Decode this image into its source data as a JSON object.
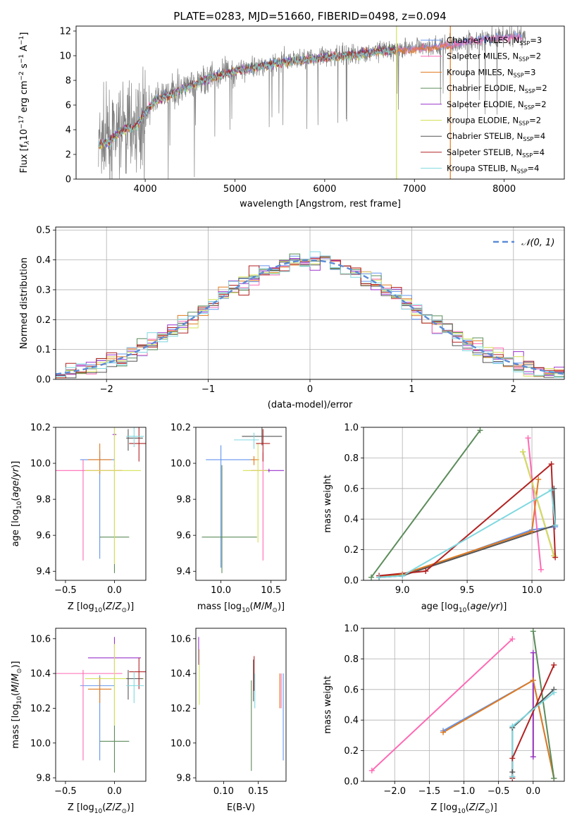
{
  "figure": {
    "title": "PLATE=0283, MJD=51660, FIBERID=0498, z=0.094"
  },
  "models": [
    {
      "label": "Chabrier MILES, N",
      "nssp": "=3",
      "color": "#6495ed"
    },
    {
      "label": "Salpeter MILES, N",
      "nssp": "=2",
      "color": "#ff69b4"
    },
    {
      "label": "Kroupa MILES, N",
      "nssp": "=3",
      "color": "#e07a1f"
    },
    {
      "label": "Chabrier ELODIE, N",
      "nssp": "=2",
      "color": "#5b8c5a"
    },
    {
      "label": "Salpeter ELODIE, N",
      "nssp": "=2",
      "color": "#9932cc"
    },
    {
      "label": "Kroupa ELODIE, N",
      "nssp": "=2",
      "color": "#d4e157"
    },
    {
      "label": "Chabrier STELIB, N",
      "nssp": "=4",
      "color": "#555555"
    },
    {
      "label": "Salpeter STELIB, N",
      "nssp": "=4",
      "color": "#b22222"
    },
    {
      "label": "Kroupa STELIB, N",
      "nssp": "=4",
      "color": "#7fd8e0"
    }
  ],
  "chart_data": [
    {
      "id": "spectrum",
      "type": "line",
      "xlabel": "wavelength [Angstrom, rest frame]",
      "ylabel_parts": [
        "Flux [f",
        "λ",
        "10",
        "−17",
        " erg cm",
        "−2",
        " s",
        "−1",
        " A",
        "−1",
        "]"
      ],
      "xlim": [
        3230,
        8670
      ],
      "ylim": [
        0,
        12.4
      ],
      "xticks": [
        4000,
        5000,
        6000,
        7000,
        8000
      ],
      "yticks": [
        0,
        2,
        4,
        6,
        8,
        10,
        12
      ],
      "data_color": "#808080",
      "continuum": {
        "x": [
          3480,
          3600,
          3700,
          3800,
          3900,
          4000,
          4100,
          4300,
          4500,
          4700,
          5000,
          5300,
          5600,
          6000,
          6300,
          6600,
          7000,
          7400,
          7800,
          8200
        ],
        "y": [
          2.8,
          3.1,
          3.7,
          4.2,
          4.3,
          5.5,
          6.3,
          7.0,
          7.6,
          8.2,
          8.8,
          9.2,
          9.6,
          9.9,
          10.1,
          10.4,
          10.6,
          10.9,
          11.4,
          11.6
        ]
      },
      "legend": "right"
    },
    {
      "id": "residuals",
      "type": "histogram",
      "xlabel": "(data-model)/error",
      "ylabel": "Normed distribution",
      "xlim": [
        -2.5,
        2.5
      ],
      "ylim": [
        0,
        0.51
      ],
      "xticks": [
        -2,
        -1,
        0,
        1,
        2
      ],
      "xtick_labels": [
        "−2",
        "−1",
        "0",
        "1",
        "2"
      ],
      "yticks": [
        0.0,
        0.1,
        0.2,
        0.3,
        0.4,
        0.5
      ],
      "ytick_labels": [
        "0.0",
        "0.1",
        "0.2",
        "0.3",
        "0.4",
        "0.5"
      ],
      "bin_width": 0.1,
      "normal_label": "𝒩(0, 1)",
      "normal_color": "#5b8bd6",
      "grid": true,
      "legend": "top-right"
    },
    {
      "id": "age-vs-Z",
      "type": "errorbar",
      "xlabel": "Z [log10(Z/Z⊙)]",
      "ylabel": "age  [log10(age/yr)]",
      "xlim": [
        -0.6,
        0.32
      ],
      "ylim": [
        9.35,
        10.2
      ],
      "xticks": [
        -0.5,
        0.0
      ],
      "xtick_labels": [
        "−0.5",
        "0.0"
      ],
      "yticks": [
        9.4,
        9.6,
        9.8,
        10.0,
        10.2
      ],
      "ytick_labels": [
        "9.4",
        "9.6",
        "9.8",
        "10.0",
        "10.2"
      ],
      "points": [
        {
          "m": 0,
          "x": -0.15,
          "xerr": [
            0.2,
            0.15
          ],
          "y": 10.02,
          "yerr": [
            0.55,
            0.05
          ]
        },
        {
          "m": 1,
          "x": -0.32,
          "xerr": [
            0.28,
            0.4
          ],
          "y": 9.96,
          "yerr": [
            0.5,
            0.06
          ]
        },
        {
          "m": 2,
          "x": -0.15,
          "xerr": [
            0.12,
            0.12
          ],
          "y": 10.02,
          "yerr": [
            0.08,
            0.09
          ]
        },
        {
          "m": 3,
          "x": 0.0,
          "xerr": [
            0.15,
            0.15
          ],
          "y": 9.59,
          "yerr": [
            0.2,
            0.4
          ]
        },
        {
          "m": 4,
          "x": 0.0,
          "xerr": [
            0.02,
            0.02
          ],
          "y": 10.16,
          "yerr": [
            0.18,
            0.05
          ]
        },
        {
          "m": 5,
          "x": 0.0,
          "xerr": [
            0.3,
            0.27
          ],
          "y": 9.96,
          "yerr": [
            0.52,
            0.24
          ]
        },
        {
          "m": 6,
          "x": 0.14,
          "xerr": [
            0.02,
            0.15
          ],
          "y": 10.14,
          "yerr": [
            0.07,
            0.05
          ]
        },
        {
          "m": 7,
          "x": 0.25,
          "xerr": [
            0.1,
            0.1
          ],
          "y": 10.11,
          "yerr": [
            0.1,
            0.09
          ]
        },
        {
          "m": 8,
          "x": 0.2,
          "xerr": [
            0.08,
            0.1
          ],
          "y": 10.15,
          "yerr": [
            0.06,
            0.05
          ]
        }
      ]
    },
    {
      "id": "age-vs-mass",
      "type": "errorbar",
      "xlabel": "mass [log10(M/M⊙)]",
      "ylabel": "",
      "xlim": [
        9.75,
        10.65
      ],
      "ylim": [
        9.35,
        10.2
      ],
      "xticks": [
        10.0,
        10.5
      ],
      "xtick_labels": [
        "10.0",
        "10.5"
      ],
      "yticks": [
        9.4,
        9.6,
        9.8,
        10.0,
        10.2
      ],
      "ytick_labels": [
        "9.4",
        "9.6",
        "9.8",
        "10.0",
        "10.2"
      ],
      "points": [
        {
          "m": 0,
          "x": 10.0,
          "xerr": [
            0.15,
            0.33
          ],
          "y": 10.02,
          "yerr": [
            0.6,
            0.08
          ]
        },
        {
          "m": 1,
          "x": 10.42,
          "xerr": [
            0.12,
            0.05
          ],
          "y": 9.96,
          "yerr": [
            0.5,
            0.1
          ]
        },
        {
          "m": 2,
          "x": 10.33,
          "xerr": [
            0.03,
            0.05
          ],
          "y": 10.02,
          "yerr": [
            0.03,
            0.02
          ]
        },
        {
          "m": 3,
          "x": 10.01,
          "xerr": [
            0.2,
            0.35
          ],
          "y": 9.59,
          "yerr": [
            0.2,
            0.4
          ]
        },
        {
          "m": 4,
          "x": 10.48,
          "xerr": [
            0.05,
            0.15
          ],
          "y": 9.96,
          "yerr": [
            0.01,
            0.01
          ]
        },
        {
          "m": 5,
          "x": 10.37,
          "xerr": [
            0.15,
            0.1
          ],
          "y": 9.96,
          "yerr": [
            0.4,
            0.15
          ]
        },
        {
          "m": 6,
          "x": 10.41,
          "xerr": [
            0.2,
            0.2
          ],
          "y": 10.15,
          "yerr": [
            0.05,
            0.05
          ]
        },
        {
          "m": 7,
          "x": 10.42,
          "xerr": [
            0.07,
            0.07
          ],
          "y": 10.11,
          "yerr": [
            0.1,
            0.08
          ]
        },
        {
          "m": 8,
          "x": 10.33,
          "xerr": [
            0.2,
            0.05
          ],
          "y": 10.13,
          "yerr": [
            0.05,
            0.04
          ]
        }
      ]
    },
    {
      "id": "weight-vs-age",
      "type": "line",
      "xlabel": "age  [log10(age/yr)]",
      "ylabel": "mass weight",
      "xlim": [
        8.7,
        10.25
      ],
      "ylim": [
        0,
        1
      ],
      "xticks": [
        9.0,
        9.5,
        10.0
      ],
      "xtick_labels": [
        "9.0",
        "9.5",
        "10.0"
      ],
      "yticks": [
        0.0,
        0.2,
        0.4,
        0.6,
        0.8,
        1.0
      ],
      "ytick_labels": [
        "0.0",
        "0.2",
        "0.4",
        "0.6",
        "0.8",
        "1.0"
      ],
      "grid": true,
      "series": [
        {
          "m": 0,
          "x": [
            8.82,
            9.0,
            10.0,
            10.18
          ],
          "y": [
            0.02,
            0.03,
            0.33,
            0.35
          ]
        },
        {
          "m": 1,
          "x": [
            10.07,
            9.97
          ],
          "y": [
            0.07,
            0.93
          ]
        },
        {
          "m": 2,
          "x": [
            8.82,
            9.0,
            10.0,
            10.05
          ],
          "y": [
            0.02,
            0.04,
            0.32,
            0.66
          ]
        },
        {
          "m": 3,
          "x": [
            8.76,
            9.6
          ],
          "y": [
            0.02,
            0.98
          ]
        },
        {
          "m": 4,
          "x": [
            9.93,
            10.17
          ],
          "y": [
            0.84,
            0.16
          ]
        },
        {
          "m": 5,
          "x": [
            9.93,
            10.17
          ],
          "y": [
            0.84,
            0.16
          ]
        },
        {
          "m": 6,
          "x": [
            8.82,
            9.0,
            10.18,
            10.17
          ],
          "y": [
            0.02,
            0.03,
            0.36,
            0.6
          ]
        },
        {
          "m": 7,
          "x": [
            8.82,
            9.18,
            10.15,
            10.18
          ],
          "y": [
            0.03,
            0.06,
            0.76,
            0.15
          ]
        },
        {
          "m": 8,
          "x": [
            8.82,
            9.0,
            10.15,
            10.18
          ],
          "y": [
            0.02,
            0.03,
            0.59,
            0.36
          ]
        }
      ]
    },
    {
      "id": "mass-vs-Z",
      "type": "errorbar",
      "xlabel": "Z [log10(Z/Z⊙)]",
      "ylabel": "mass [log10(M/M⊙)]",
      "xlim": [
        -0.6,
        0.32
      ],
      "ylim": [
        9.78,
        10.66
      ],
      "xticks": [
        -0.5,
        0.0
      ],
      "xtick_labels": [
        "−0.5",
        "0.0"
      ],
      "yticks": [
        9.8,
        10.0,
        10.2,
        10.4,
        10.6
      ],
      "ytick_labels": [
        "9.8",
        "10.0",
        "10.2",
        "10.4",
        "10.6"
      ],
      "points": [
        {
          "m": 0,
          "x": -0.15,
          "xerr": [
            0.2,
            0.15
          ],
          "y": 10.33,
          "yerr": [
            0.43,
            0.06
          ]
        },
        {
          "m": 1,
          "x": -0.32,
          "xerr": [
            0.28,
            0.4
          ],
          "y": 10.4,
          "yerr": [
            0.5,
            0.02
          ]
        },
        {
          "m": 2,
          "x": -0.15,
          "xerr": [
            0.12,
            0.12
          ],
          "y": 10.31,
          "yerr": [
            0.08,
            0.07
          ]
        },
        {
          "m": 3,
          "x": 0.0,
          "xerr": [
            0.15,
            0.15
          ],
          "y": 10.01,
          "yerr": [
            0.18,
            0.37
          ]
        },
        {
          "m": 4,
          "x": 0.0,
          "xerr": [
            0.27,
            0.27
          ],
          "y": 10.49,
          "yerr": [
            0.08,
            0.12
          ]
        },
        {
          "m": 5,
          "x": 0.0,
          "xerr": [
            0.3,
            0.3
          ],
          "y": 10.37,
          "yerr": [
            0.27,
            0.2
          ]
        },
        {
          "m": 6,
          "x": 0.14,
          "xerr": [
            0.02,
            0.15
          ],
          "y": 10.37,
          "yerr": [
            0.12,
            0.05
          ]
        },
        {
          "m": 7,
          "x": 0.25,
          "xerr": [
            0.1,
            0.1
          ],
          "y": 10.41,
          "yerr": [
            0.1,
            0.08
          ]
        },
        {
          "m": 8,
          "x": 0.2,
          "xerr": [
            0.08,
            0.1
          ],
          "y": 10.33,
          "yerr": [
            0.1,
            0.08
          ]
        }
      ]
    },
    {
      "id": "mass-vs-EBV",
      "type": "errorbar",
      "xlabel": "E(B-V)",
      "ylabel": "",
      "xlim": [
        0.06,
        0.19
      ],
      "ylim": [
        9.78,
        10.66
      ],
      "xticks": [
        0.1,
        0.15
      ],
      "xtick_labels": [
        "0.10",
        "0.15"
      ],
      "yticks": [
        9.8,
        10.0,
        10.2,
        10.4,
        10.6
      ],
      "ytick_labels": [
        "9.8",
        "10.0",
        "10.2",
        "10.4",
        "10.6"
      ],
      "points": [
        {
          "m": 0,
          "x": 0.186,
          "xerr": [
            0,
            0
          ],
          "y": 10.15,
          "yerr": [
            0.25,
            0.25
          ]
        },
        {
          "m": 1,
          "x": 0.183,
          "xerr": [
            0,
            0
          ],
          "y": 10.3,
          "yerr": [
            0.1,
            0.1
          ]
        },
        {
          "m": 2,
          "x": 0.181,
          "xerr": [
            0,
            0
          ],
          "y": 10.3,
          "yerr": [
            0.1,
            0.1
          ]
        },
        {
          "m": 3,
          "x": 0.14,
          "xerr": [
            0,
            0
          ],
          "y": 10.1,
          "yerr": [
            0.26,
            0.26
          ]
        },
        {
          "m": 4,
          "x": 0.064,
          "xerr": [
            0,
            0
          ],
          "y": 10.53,
          "yerr": [
            0.08,
            0.08
          ]
        },
        {
          "m": 5,
          "x": 0.065,
          "xerr": [
            0,
            0
          ],
          "y": 10.38,
          "yerr": [
            0.16,
            0.16
          ]
        },
        {
          "m": 6,
          "x": 0.143,
          "xerr": [
            0,
            0
          ],
          "y": 10.36,
          "yerr": [
            0.12,
            0.12
          ]
        },
        {
          "m": 7,
          "x": 0.144,
          "xerr": [
            0,
            0
          ],
          "y": 10.4,
          "yerr": [
            0.1,
            0.1
          ]
        },
        {
          "m": 8,
          "x": 0.145,
          "xerr": [
            0,
            0
          ],
          "y": 10.3,
          "yerr": [
            0.1,
            0.1
          ]
        }
      ]
    },
    {
      "id": "weight-vs-Z",
      "type": "line",
      "xlabel": "Z [log10(Z/Z⊙)]",
      "ylabel": "mass weight",
      "xlim": [
        -2.45,
        0.45
      ],
      "ylim": [
        0,
        1
      ],
      "xticks": [
        -2.0,
        -1.5,
        -1.0,
        -0.5,
        0.0
      ],
      "xtick_labels": [
        "−2.0",
        "−1.5",
        "−1.0",
        "−0.5",
        "0.0"
      ],
      "yticks": [
        0.0,
        0.2,
        0.4,
        0.6,
        0.8,
        1.0
      ],
      "ytick_labels": [
        "0.0",
        "0.2",
        "0.4",
        "0.6",
        "0.8",
        "1.0"
      ],
      "grid": true,
      "series": [
        {
          "m": 1,
          "x": [
            -2.33,
            -0.3
          ],
          "y": [
            0.07,
            0.93
          ]
        },
        {
          "m": 0,
          "x": [
            -1.3,
            0.0,
            0.3
          ],
          "y": [
            0.33,
            0.66,
            0.02
          ]
        },
        {
          "m": 2,
          "x": [
            -1.3,
            0.0,
            0.3
          ],
          "y": [
            0.32,
            0.66,
            0.02
          ]
        },
        {
          "m": 3,
          "x": [
            0.0,
            0.3
          ],
          "y": [
            0.98,
            0.02
          ]
        },
        {
          "m": 5,
          "x": [
            0.0,
            0.0
          ],
          "y": [
            0.84,
            0.16
          ]
        },
        {
          "m": 4,
          "x": [
            0.0,
            0.0
          ],
          "y": [
            0.84,
            0.16
          ]
        },
        {
          "m": 6,
          "x": [
            -0.3,
            -0.3,
            -0.3,
            0.3
          ],
          "y": [
            0.03,
            0.06,
            0.35,
            0.6
          ]
        },
        {
          "m": 7,
          "x": [
            -0.3,
            -0.3,
            0.3
          ],
          "y": [
            0.02,
            0.15,
            0.76
          ]
        },
        {
          "m": 8,
          "x": [
            -0.3,
            -0.3,
            0.3
          ],
          "y": [
            0.03,
            0.36,
            0.58
          ]
        }
      ]
    }
  ]
}
